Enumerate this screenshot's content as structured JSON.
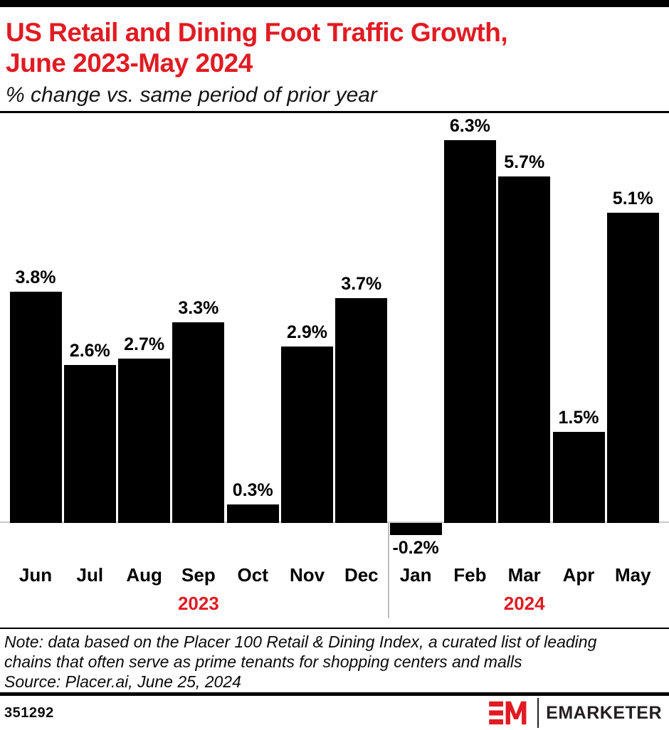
{
  "page": {
    "accent_red": "#e11b22",
    "bar_color": "#000000",
    "axis_color": "#c9c9c9"
  },
  "header": {
    "title_line1": "US Retail and Dining Foot Traffic Growth,",
    "title_line2": "June 2023-May 2024",
    "subtitle": "% change vs. same period of prior year"
  },
  "chart_data": {
    "type": "bar",
    "title": "US Retail and Dining Foot Traffic Growth, June 2023-May 2024",
    "subtitle": "% change vs. same period of prior year",
    "unit": "%",
    "categories": [
      "Jun",
      "Jul",
      "Aug",
      "Sep",
      "Oct",
      "Nov",
      "Dec",
      "Jan",
      "Feb",
      "Mar",
      "Apr",
      "May"
    ],
    "values": [
      3.8,
      2.6,
      2.7,
      3.3,
      0.3,
      2.9,
      3.7,
      -0.2,
      6.3,
      5.7,
      1.5,
      5.1
    ],
    "labels": [
      "3.8%",
      "2.6%",
      "2.7%",
      "3.3%",
      "0.3%",
      "2.9%",
      "3.7%",
      "-0.2%",
      "6.3%",
      "5.7%",
      "1.5%",
      "5.1%"
    ],
    "year_groups": [
      {
        "label": "2023",
        "start": 0,
        "end": 6
      },
      {
        "label": "2024",
        "start": 7,
        "end": 11
      }
    ],
    "ylim": [
      -0.5,
      6.8
    ],
    "grid": false,
    "legend": false,
    "bar_color": "#000000",
    "axis_color": "#c9c9c9"
  },
  "footnote": {
    "line1": "Note: data based on the Placer 100 Retail & Dining Index, a curated list of leading",
    "line2": "chains that often serve as prime tenants for shopping centers and malls",
    "source": "Source: Placer.ai, June 25, 2024"
  },
  "footer": {
    "chart_id": "351292",
    "brand": "EMARKETER"
  }
}
